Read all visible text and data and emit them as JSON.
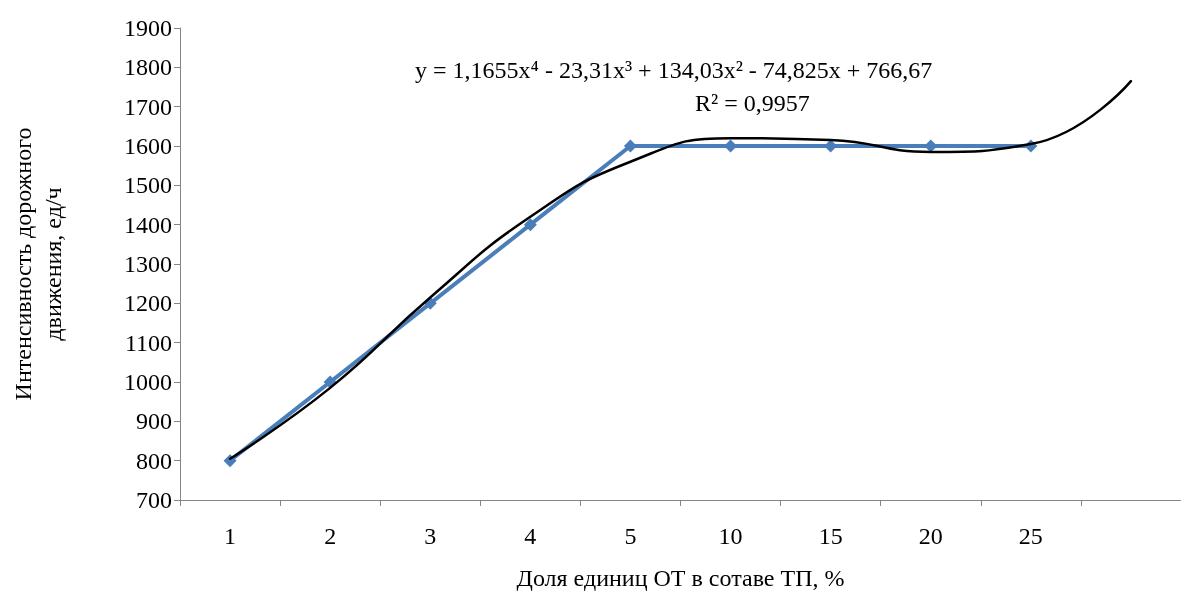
{
  "chart_data": {
    "type": "line",
    "xlabel": "Доля единиц ОТ в сотаве ТП, %",
    "ylabel": "Интенсивность дорожного\nдвижения, ед/ч",
    "categories": [
      "1",
      "2",
      "3",
      "4",
      "5",
      "10",
      "15",
      "20",
      "25",
      null
    ],
    "ylim": [
      700,
      1900
    ],
    "yticks": [
      700,
      800,
      900,
      1000,
      1100,
      1200,
      1300,
      1400,
      1500,
      1600,
      1700,
      1800,
      1900
    ],
    "grid": false,
    "series": [
      {
        "color": "#4a7ebb",
        "marker": "diamond",
        "line_style": "solid",
        "values": [
          800,
          1000,
          1200,
          1400,
          1600,
          1600,
          1600,
          1600,
          1600,
          null
        ]
      },
      {
        "color": "#000000",
        "marker": "none",
        "line_style": "solid",
        "values": [
          805,
          985,
          1215,
          1420,
          1560,
          1620,
          1615,
          1585,
          1605,
          1765
        ]
      }
    ],
    "annotations": [
      "y = 1,1655x⁴ - 23,31x³ + 134,03x² - 74,825x + 766,67",
      "R² = 0,9957"
    ]
  }
}
